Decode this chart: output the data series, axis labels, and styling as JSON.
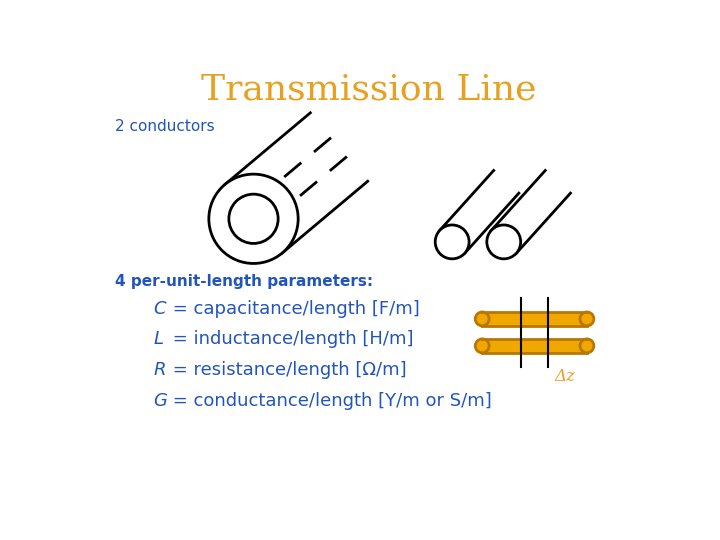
{
  "title": "Transmission Line",
  "title_color": "#E8A020",
  "title_fontsize": 26,
  "bg_color": "#FFFFFF",
  "blue_color": "#2255BB",
  "orange_color": "#E8A020",
  "conductors_label": "2 conductors",
  "params_label": "4 per-unit-length parameters:",
  "delta_z": "Δz",
  "rod_fill": "#F0A800",
  "rod_edge": "#B87800"
}
